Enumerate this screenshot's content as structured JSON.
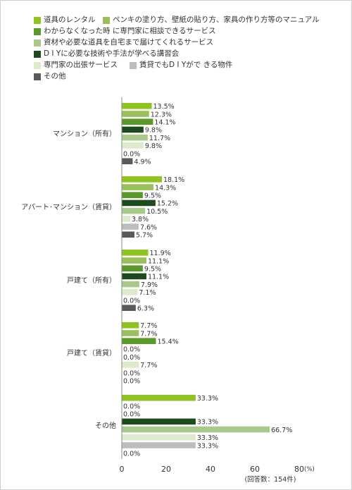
{
  "legend": [
    {
      "label": "道具のレンタル",
      "color": "#8fc31f"
    },
    {
      "label": "ペンキの塗り方、壁紙の貼り方、家具の作り方等のマニュアル",
      "color": "#9bbf5a"
    },
    {
      "label": "わからなくなった時 に専門家に相談できるサービス",
      "color": "#5a9a2a"
    },
    {
      "label": "資材や必要な道具を自宅まで届けてくれるサービス",
      "color": "#a8c98a"
    },
    {
      "label": "D I Yに必要な技術や手法が学べる講習会",
      "color": "#1f4a1f"
    },
    {
      "label": "専門家の出張サービス",
      "color": "#dcebc9"
    },
    {
      "label": "賃貸でもD I Yがで きる物件",
      "color": "#bdbdbd"
    },
    {
      "label": "その他",
      "color": "#5a5a5a"
    }
  ],
  "chart_data": {
    "type": "bar",
    "orientation": "horizontal",
    "categories": [
      "マンション（所有）",
      "アパート･マンション（賃貸）",
      "戸建て（所有）",
      "戸建て（賃貸）",
      "その他"
    ],
    "series": [
      {
        "name": "道具のレンタル",
        "color": "#8fc31f",
        "values": [
          13.5,
          18.1,
          11.9,
          7.7,
          33.3
        ]
      },
      {
        "name": "ペンキの塗り方、壁紙の貼り方、家具の作り方等のマニュアル",
        "color": "#9bbf5a",
        "values": [
          12.3,
          14.3,
          11.1,
          7.7,
          0.0
        ]
      },
      {
        "name": "わからなくなった時 に専門家に相談できるサービス",
        "color": "#5a9a2a",
        "values": [
          14.1,
          9.5,
          9.5,
          15.4,
          0.0
        ]
      },
      {
        "name": "D I Yに必要な技術や手法が学べる講習会",
        "color": "#1f4a1f",
        "values": [
          9.8,
          15.2,
          11.1,
          0.0,
          33.3
        ]
      },
      {
        "name": "資材や必要な道具を自宅まで届けてくれるサービス",
        "color": "#a8c98a",
        "values": [
          11.7,
          10.5,
          7.9,
          0.0,
          66.7
        ]
      },
      {
        "name": "専門家の出張サービス",
        "color": "#dcebc9",
        "values": [
          9.8,
          3.8,
          7.1,
          7.7,
          33.3
        ]
      },
      {
        "name": "賃貸でもD I Yがで きる物件",
        "color": "#bdbdbd",
        "values": [
          0.0,
          7.6,
          0.0,
          0.0,
          33.3
        ]
      },
      {
        "name": "その他",
        "color": "#5a5a5a",
        "values": [
          4.9,
          5.7,
          6.3,
          0.0,
          0.0
        ]
      }
    ],
    "value_labels": [
      [
        "13.5%",
        "12.3%",
        "14.1%",
        "9.8%",
        "11.7%",
        "9.8%",
        "0.0%",
        "4.9%"
      ],
      [
        "18.1%",
        "14.3%",
        "9.5%",
        "15.2%",
        "10.5%",
        "3.8%",
        "7.6%",
        "5.7%"
      ],
      [
        "11.9%",
        "11.1%",
        "9.5%",
        "11.1%",
        "7.9%",
        "7.1%",
        "0.0%",
        "6.3%"
      ],
      [
        "7.7%",
        "7.7%",
        "15.4%",
        "0.0%",
        "0.0%",
        "7.7%",
        "0.0%",
        "0.0%"
      ],
      [
        "33.3%",
        "0.0%",
        "0.0%",
        "33.3%",
        "66.7%",
        "33.3%",
        "33.3%",
        "0.0%"
      ]
    ],
    "x_ticks": [
      "0",
      "20",
      "40",
      "60",
      "80"
    ],
    "xlim": [
      0,
      80
    ],
    "unit": "(%)",
    "note": "(回答数：154件)",
    "grid": false
  }
}
